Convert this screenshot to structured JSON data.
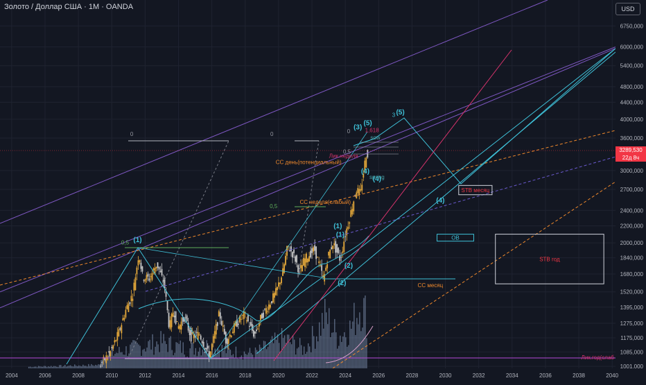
{
  "header": {
    "title": "Золото / Доллар США · 1M · OANDA",
    "currency_button": "USD"
  },
  "price": {
    "label": "3289,530",
    "countdown": "22д 8ч"
  },
  "colors": {
    "bg": "#131722",
    "grid": "#1f2330",
    "up": "#e6a93a",
    "down": "#c9c9c9",
    "cyan": "#3fc1d8",
    "magenta": "#d6336c",
    "orange": "#f0892c",
    "violet": "#7e57c2",
    "green": "#5fae5b",
    "red": "#f23645"
  },
  "chart_data": {
    "type": "candlestick",
    "scale": "log",
    "ylim": [
      990,
      7000
    ],
    "xlim": [
      2003.3,
      2040.2
    ],
    "y_ticks": [
      {
        "v": 6750,
        "label": "6750,000"
      },
      {
        "v": 6000,
        "label": "6000,000"
      },
      {
        "v": 5400,
        "label": "5400,000"
      },
      {
        "v": 4800,
        "label": "4800,000"
      },
      {
        "v": 4400,
        "label": "4400,000"
      },
      {
        "v": 4000,
        "label": "4000,000"
      },
      {
        "v": 3600,
        "label": "3600,000"
      },
      {
        "v": 3000,
        "label": "3000,000"
      },
      {
        "v": 2700,
        "label": "2700,000"
      },
      {
        "v": 2400,
        "label": "2400,000"
      },
      {
        "v": 2200,
        "label": "2200,000"
      },
      {
        "v": 2000,
        "label": "2000,000"
      },
      {
        "v": 1840,
        "label": "1840,000"
      },
      {
        "v": 1680,
        "label": "1680,000"
      },
      {
        "v": 1520,
        "label": "1520,000"
      },
      {
        "v": 1395,
        "label": "1395,000"
      },
      {
        "v": 1275,
        "label": "1275,000"
      },
      {
        "v": 1175,
        "label": "1175,000"
      },
      {
        "v": 1085,
        "label": "1085,000"
      },
      {
        "v": 1001,
        "label": "1001,000"
      }
    ],
    "x_ticks": [
      "2004",
      "2006",
      "2008",
      "2010",
      "2012",
      "2014",
      "2016",
      "2018",
      "2020",
      "2022",
      "2024",
      "2026",
      "2028",
      "2030",
      "2032",
      "2034",
      "2036",
      "2038",
      "2040"
    ],
    "x_tick_start": 2004,
    "x_tick_step": 2,
    "price_anchors": [
      [
        2009.3,
        1001
      ],
      [
        2010.0,
        1090
      ],
      [
        2010.5,
        1220
      ],
      [
        2010.9,
        1380
      ],
      [
        2011.3,
        1500
      ],
      [
        2011.67,
        1890
      ],
      [
        2011.9,
        1650
      ],
      [
        2012.3,
        1640
      ],
      [
        2012.75,
        1780
      ],
      [
        2013.2,
        1580
      ],
      [
        2013.5,
        1240
      ],
      [
        2013.75,
        1380
      ],
      [
        2014.0,
        1240
      ],
      [
        2014.4,
        1320
      ],
      [
        2014.8,
        1180
      ],
      [
        2015.3,
        1200
      ],
      [
        2015.9,
        1060
      ],
      [
        2016.5,
        1350
      ],
      [
        2016.9,
        1150
      ],
      [
        2017.5,
        1270
      ],
      [
        2018.0,
        1340
      ],
      [
        2018.6,
        1190
      ],
      [
        2019.0,
        1320
      ],
      [
        2019.5,
        1420
      ],
      [
        2019.9,
        1520
      ],
      [
        2020.3,
        1700
      ],
      [
        2020.6,
        1970
      ],
      [
        2021.0,
        1850
      ],
      [
        2021.3,
        1700
      ],
      [
        2021.6,
        1820
      ],
      [
        2022.2,
        1930
      ],
      [
        2022.75,
        1630
      ],
      [
        2023.0,
        1850
      ],
      [
        2023.3,
        2000
      ],
      [
        2023.75,
        1820
      ],
      [
        2024.0,
        2060
      ],
      [
        2024.3,
        2300
      ],
      [
        2024.7,
        2700
      ],
      [
        2024.95,
        2630
      ],
      [
        2025.2,
        3100
      ],
      [
        2025.3,
        3290
      ]
    ],
    "volume_anchors": [
      [
        2009.5,
        0.12
      ],
      [
        2011.5,
        0.2
      ],
      [
        2013.0,
        0.25
      ],
      [
        2014.5,
        0.18
      ],
      [
        2015.9,
        0.22
      ],
      [
        2017.0,
        0.16
      ],
      [
        2018.5,
        0.14
      ],
      [
        2020.3,
        0.28
      ],
      [
        2021.5,
        0.18
      ],
      [
        2022.3,
        0.35
      ],
      [
        2022.8,
        0.5
      ],
      [
        2023.5,
        0.3
      ],
      [
        2024.3,
        0.38
      ],
      [
        2024.9,
        0.62
      ],
      [
        2025.25,
        0.5
      ]
    ],
    "annotations": [
      {
        "t": "(1)",
        "x": 2011.55,
        "y": 2010,
        "c": "cyan",
        "s": 10,
        "b": true
      },
      {
        "t": "(2)",
        "x": 2023.8,
        "y": 1580,
        "c": "cyan",
        "s": 10,
        "b": true
      },
      {
        "t": "(2)",
        "x": 2024.2,
        "y": 1740,
        "c": "cyan",
        "s": 10,
        "b": true
      },
      {
        "t": "(1)",
        "x": 2023.55,
        "y": 2170,
        "c": "cyan",
        "s": 10,
        "b": true
      },
      {
        "t": "(1)",
        "x": 2023.7,
        "y": 2070,
        "c": "cyan",
        "s": 10,
        "b": true
      },
      {
        "t": "(3)",
        "x": 2024.75,
        "y": 3780,
        "c": "cyan",
        "s": 10,
        "b": true
      },
      {
        "t": "(5)",
        "x": 2025.35,
        "y": 3870,
        "c": "cyan",
        "s": 10,
        "b": true
      },
      {
        "t": "(5)",
        "x": 2027.3,
        "y": 4110,
        "c": "cyan",
        "s": 10,
        "b": true
      },
      {
        "t": "(4)",
        "x": 2025.2,
        "y": 2950,
        "c": "cyan",
        "s": 10,
        "b": true
      },
      {
        "t": "(4)",
        "x": 2025.9,
        "y": 2830,
        "c": "cyan",
        "s": 10,
        "b": true
      },
      {
        "t": "(4)",
        "x": 2029.7,
        "y": 2510,
        "c": "cyan",
        "s": 10,
        "b": true
      },
      {
        "t": "3",
        "x": 2026.9,
        "y": 4050,
        "c": "cyan",
        "s": 8,
        "b": false
      },
      {
        "t": "0",
        "x": 2011.2,
        "y": 3640,
        "c": "gray",
        "s": 8,
        "b": false
      },
      {
        "t": "0",
        "x": 2019.6,
        "y": 3640,
        "c": "gray",
        "s": 8,
        "b": false
      },
      {
        "t": "0",
        "x": 2024.2,
        "y": 3700,
        "c": "gray",
        "s": 8,
        "b": false
      },
      {
        "t": "0,5",
        "x": 2010.8,
        "y": 1980,
        "c": "green",
        "s": 8,
        "b": false
      },
      {
        "t": "0,5",
        "x": 2019.7,
        "y": 2430,
        "c": "green",
        "s": 8,
        "b": false
      },
      {
        "t": "0,5",
        "x": 2024.1,
        "y": 3300,
        "c": "gray",
        "s": 8,
        "b": false
      },
      {
        "t": "1,618",
        "x": 2025.6,
        "y": 3720,
        "c": "magenta",
        "s": 8,
        "b": false
      },
      {
        "t": "Лик.неделя",
        "x": 2023.9,
        "y": 3220,
        "c": "magenta",
        "s": 8,
        "b": false
      },
      {
        "t": "sow",
        "x": 2025.8,
        "y": 3570,
        "c": "teal",
        "s": 8,
        "b": false
      },
      {
        "t": "spring",
        "x": 2025.9,
        "y": 2860,
        "c": "teal",
        "s": 8,
        "b": false
      },
      {
        "t": "CC день(потенциальный)",
        "x": 2021.8,
        "y": 3110,
        "c": "orange",
        "s": 8,
        "b": false
      },
      {
        "t": "CC неделя(слабый)",
        "x": 2022.8,
        "y": 2490,
        "c": "orange",
        "s": 8,
        "b": false
      },
      {
        "t": "CC месяц",
        "x": 2029.1,
        "y": 1560,
        "c": "orange",
        "s": 8,
        "b": false
      }
    ],
    "zone_labels": [
      {
        "t": "STB месяц",
        "x1": 2030.8,
        "x2": 2032.8,
        "y1": 2620,
        "y2": 2760,
        "c": "red"
      },
      {
        "t": "OB",
        "x1": 2029.5,
        "x2": 2031.7,
        "y1": 2020,
        "y2": 2100,
        "c": "cyan"
      },
      {
        "t": "STB год",
        "x1": 2033.0,
        "x2": 2039.5,
        "y1": 1590,
        "y2": 2100,
        "c": "red"
      }
    ],
    "liq_year_label": "Лик.год(слаб"
  }
}
